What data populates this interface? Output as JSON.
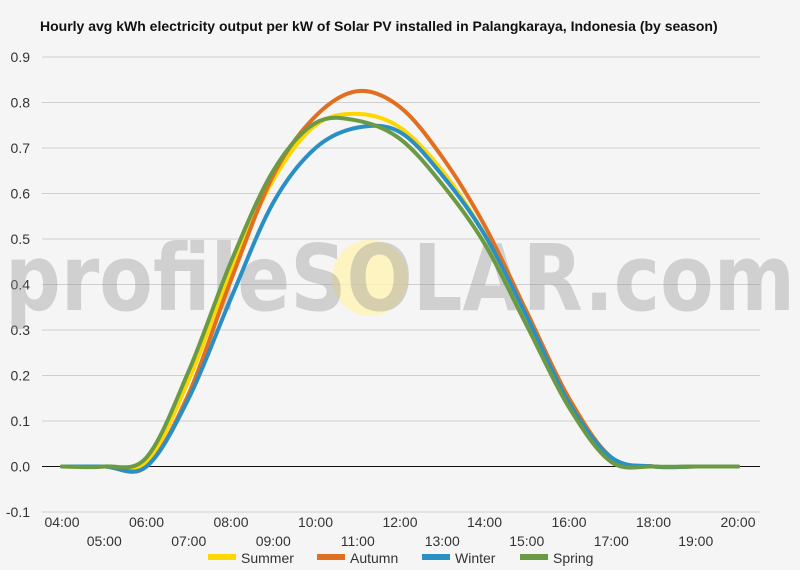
{
  "chart_data": {
    "type": "line",
    "title": "Hourly avg kWh electricity output per kW of Solar PV installed in Palangkaraya, Indonesia (by season)",
    "xlabel": "",
    "ylabel": "",
    "x": [
      "04:00",
      "05:00",
      "06:00",
      "07:00",
      "08:00",
      "09:00",
      "10:00",
      "11:00",
      "12:00",
      "13:00",
      "14:00",
      "15:00",
      "16:00",
      "17:00",
      "18:00",
      "19:00",
      "20:00"
    ],
    "ylim": [
      -0.1,
      0.9
    ],
    "yticks": [
      -0.1,
      0.0,
      0.1,
      0.2,
      0.3,
      0.4,
      0.5,
      0.6,
      0.7,
      0.8,
      0.9
    ],
    "ytick_labels": [
      "-0.1",
      "0.0",
      "0.1",
      "0.2",
      "0.3",
      "0.4",
      "0.5",
      "0.6",
      "0.7",
      "0.8",
      "0.9"
    ],
    "grid": true,
    "legend_position": "bottom",
    "watermark": "profileSOLAR.com",
    "series": [
      {
        "name": "Summer",
        "color": "#ffd700",
        "values": [
          0.0,
          0.0,
          0.01,
          0.19,
          0.43,
          0.63,
          0.75,
          0.775,
          0.745,
          0.65,
          0.51,
          0.33,
          0.15,
          0.02,
          0.0,
          0.0,
          0.0
        ]
      },
      {
        "name": "Autumn",
        "color": "#e07020",
        "values": [
          0.0,
          0.0,
          0.0,
          0.16,
          0.41,
          0.64,
          0.77,
          0.825,
          0.79,
          0.68,
          0.53,
          0.34,
          0.15,
          0.02,
          0.0,
          0.0,
          0.0
        ]
      },
      {
        "name": "Winter",
        "color": "#2a8fc4",
        "values": [
          0.0,
          0.0,
          0.0,
          0.15,
          0.37,
          0.58,
          0.7,
          0.745,
          0.735,
          0.64,
          0.51,
          0.33,
          0.14,
          0.02,
          0.0,
          0.0,
          0.0
        ]
      },
      {
        "name": "Spring",
        "color": "#6b9a45",
        "values": [
          0.0,
          0.0,
          0.02,
          0.21,
          0.45,
          0.65,
          0.755,
          0.76,
          0.72,
          0.62,
          0.49,
          0.31,
          0.13,
          0.01,
          0.0,
          0.0,
          0.0
        ]
      }
    ]
  }
}
